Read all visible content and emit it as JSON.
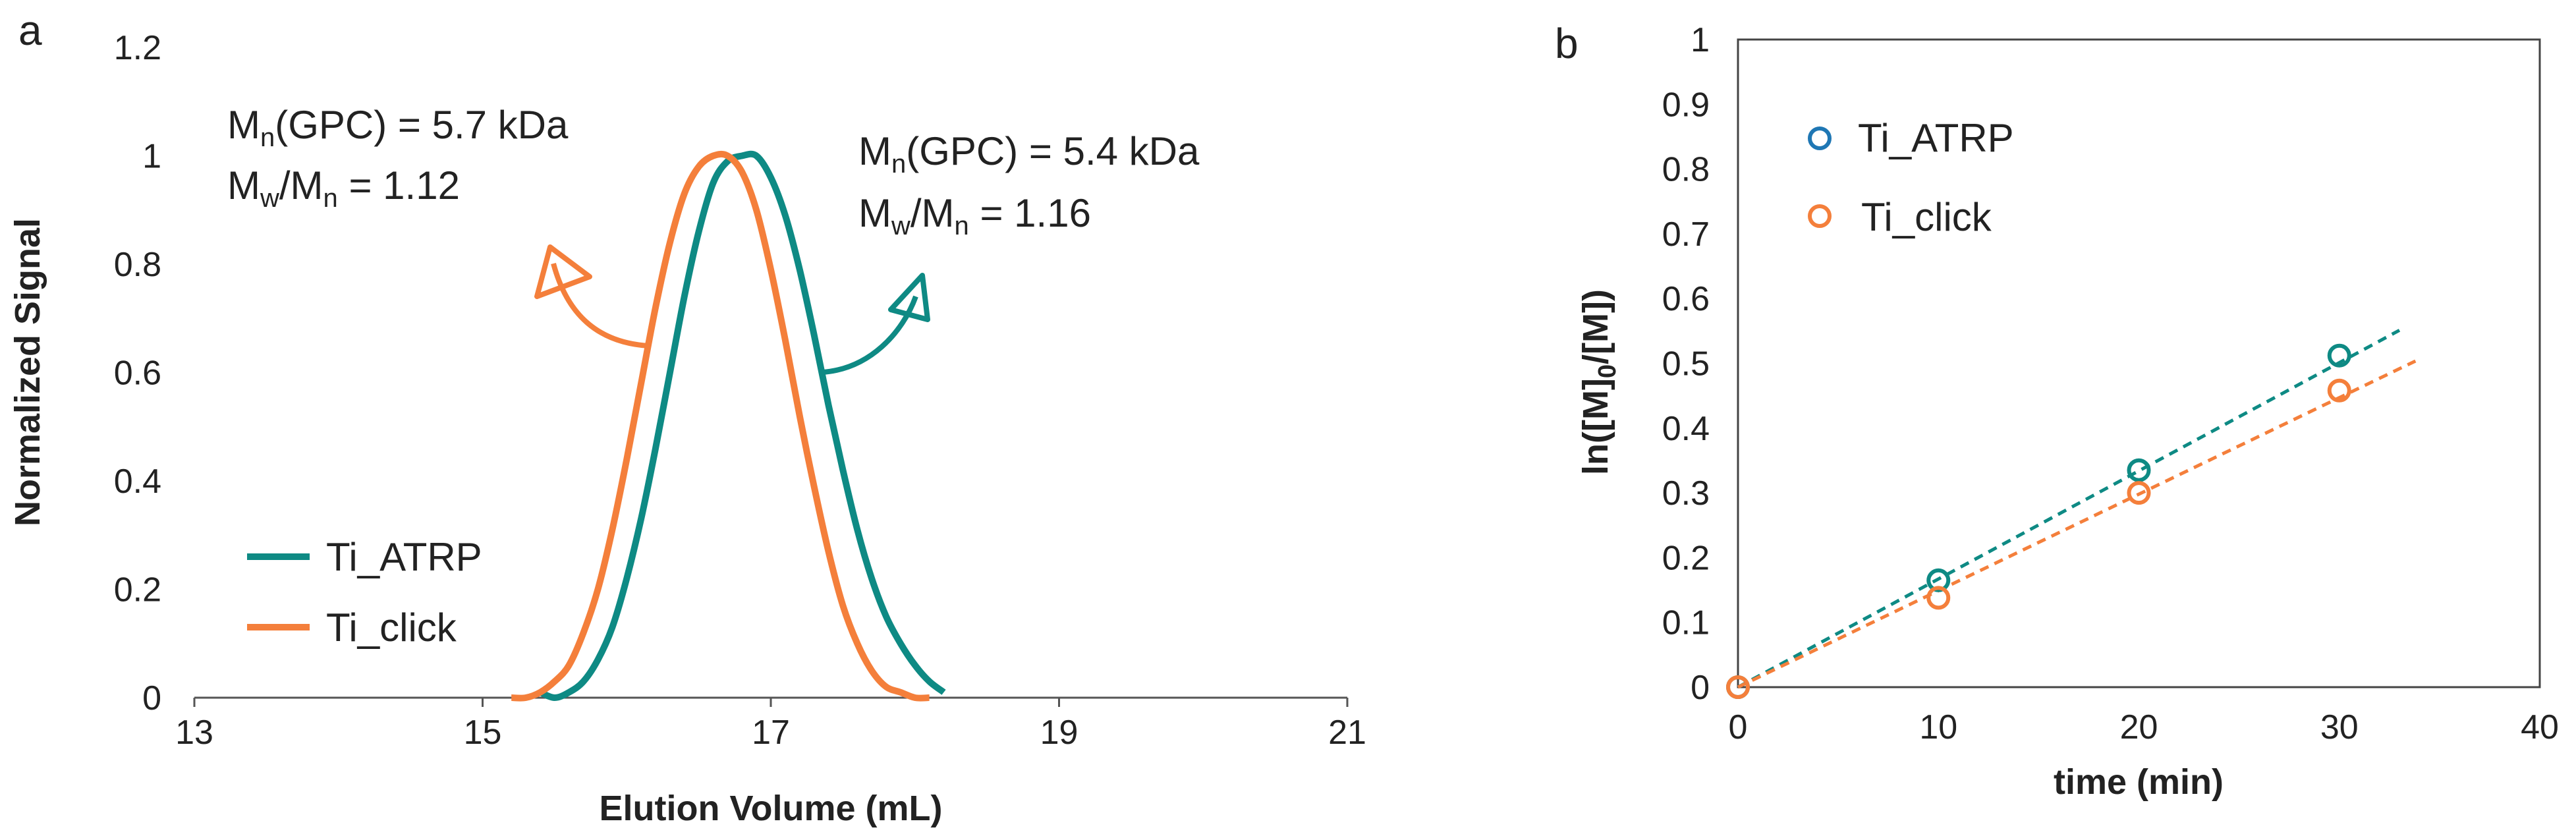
{
  "colors": {
    "teal": "#0e8a84",
    "orange": "#f47f3b",
    "blue": "#1f77b4",
    "axis": "#333333"
  },
  "chart_data": [
    {
      "panel": "a",
      "type": "line",
      "title": "",
      "xlabel": "Elution Volume (mL)",
      "ylabel": "Normalized Signal",
      "xlim": [
        13,
        21
      ],
      "ylim": [
        0,
        1.2
      ],
      "xticks": [
        "13",
        "15",
        "17",
        "19",
        "21"
      ],
      "yticks": [
        "0",
        "0.2",
        "0.4",
        "0.6",
        "0.8",
        "1",
        "1.2"
      ],
      "series": [
        {
          "name": "Ti_ATRP",
          "color": "#0e8a84",
          "x": [
            15.4,
            15.5,
            15.6,
            15.7,
            15.8,
            15.9,
            16.0,
            16.1,
            16.2,
            16.3,
            16.4,
            16.5,
            16.6,
            16.7,
            16.8,
            16.9,
            17.0,
            17.1,
            17.2,
            17.3,
            17.4,
            17.5,
            17.6,
            17.7,
            17.8,
            17.9,
            18.0,
            18.1,
            18.2
          ],
          "values": [
            0.01,
            0.0,
            0.01,
            0.03,
            0.07,
            0.13,
            0.22,
            0.33,
            0.46,
            0.6,
            0.74,
            0.86,
            0.95,
            0.99,
            1.0,
            1.0,
            0.96,
            0.89,
            0.79,
            0.67,
            0.54,
            0.42,
            0.31,
            0.22,
            0.15,
            0.1,
            0.06,
            0.03,
            0.01
          ]
        },
        {
          "name": "Ti_click",
          "color": "#f47f3b",
          "x": [
            15.2,
            15.3,
            15.4,
            15.5,
            15.6,
            15.7,
            15.8,
            15.9,
            16.0,
            16.1,
            16.2,
            16.3,
            16.4,
            16.5,
            16.6,
            16.7,
            16.8,
            16.9,
            17.0,
            17.1,
            17.2,
            17.3,
            17.4,
            17.5,
            17.6,
            17.7,
            17.8,
            17.9,
            18.0,
            18.1
          ],
          "values": [
            0.0,
            0.0,
            0.01,
            0.03,
            0.06,
            0.12,
            0.2,
            0.31,
            0.44,
            0.58,
            0.72,
            0.84,
            0.93,
            0.98,
            1.0,
            1.0,
            0.97,
            0.9,
            0.79,
            0.66,
            0.52,
            0.39,
            0.27,
            0.17,
            0.1,
            0.05,
            0.02,
            0.01,
            0.0,
            0.0
          ]
        }
      ],
      "annotations": [
        {
          "base": "M",
          "sub": "n",
          "rest": "(GPC) = 5.7 kDa"
        },
        {
          "base1": "M",
          "sub1": "w",
          "mid": "/M",
          "sub2": "n",
          "rest": " = 1.12"
        },
        {
          "base": "M",
          "sub": "n",
          "rest": "(GPC) = 5.4 kDa"
        },
        {
          "base1": "M",
          "sub1": "w",
          "mid": "/M",
          "sub2": "n",
          "rest": " = 1.16"
        }
      ],
      "legend": {
        "placement": "bottom-left",
        "entries": [
          "Ti_ATRP",
          "Ti_click"
        ]
      }
    },
    {
      "panel": "b",
      "type": "scatter",
      "title": "",
      "xlabel": "time (min)",
      "ylabel_base": "ln([M]",
      "ylabel_sub": "0",
      "ylabel_rest": "/[M])",
      "xlim": [
        0,
        40
      ],
      "ylim": [
        0,
        1
      ],
      "xticks": [
        "0",
        "10",
        "20",
        "30",
        "40"
      ],
      "yticks": [
        "0",
        "0.1",
        "0.2",
        "0.3",
        "0.4",
        "0.5",
        "0.6",
        "0.7",
        "0.8",
        "0.9",
        "1"
      ],
      "series": [
        {
          "name": "Ti_ATRP",
          "color": "#0e8a84",
          "marker_color": "#1f77b4",
          "x": [
            0,
            10,
            20,
            30
          ],
          "values": [
            0,
            0.165,
            0.335,
            0.512
          ],
          "fit_slope": 0.0167,
          "fit_xmax": 33
        },
        {
          "name": "Ti_click",
          "color": "#f47f3b",
          "marker_color": "#f47f3b",
          "x": [
            0,
            10,
            20,
            30
          ],
          "values": [
            0,
            0.138,
            0.3,
            0.458
          ],
          "fit_slope": 0.0149,
          "fit_xmax": 33.8
        }
      ],
      "legend": {
        "placement": "top-left",
        "entries": [
          "Ti_ATRP",
          "Ti_click"
        ]
      }
    }
  ],
  "panel_labels": {
    "a": "a",
    "b": "b"
  }
}
